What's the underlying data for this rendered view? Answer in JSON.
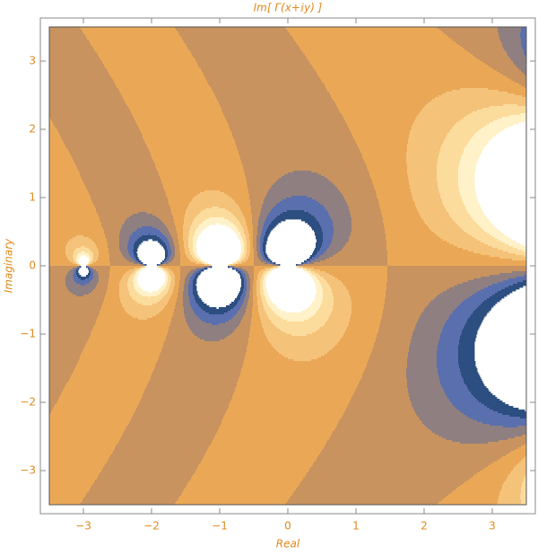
{
  "chart_data": {
    "type": "contour",
    "title": "Im[ Γ(x+ⅈy) ]",
    "x_label": "Real",
    "y_label": "Imaginary",
    "xlim": [
      -3.5,
      3.5
    ],
    "ylim": [
      -3.5,
      3.5
    ],
    "xticks": [
      {
        "value": -3,
        "label": "−3"
      },
      {
        "value": -2,
        "label": "−2"
      },
      {
        "value": -1,
        "label": "−1"
      },
      0,
      1,
      2,
      3
    ],
    "yticks": [
      {
        "value": -3,
        "label": "−3"
      },
      {
        "value": -2,
        "label": "−2"
      },
      {
        "value": -1,
        "label": "−1"
      },
      0,
      1,
      2,
      3
    ],
    "levels": [
      -1,
      -0.75,
      -0.5,
      -0.25,
      0,
      0.25,
      0.5,
      0.75,
      1
    ],
    "colors": [
      "#2d4e80",
      "#5a6fae",
      "#8f7f80",
      "#c8935f",
      "#eaa857",
      "#f5c27a",
      "#fcdc9c",
      "#fff1c8"
    ]
  }
}
